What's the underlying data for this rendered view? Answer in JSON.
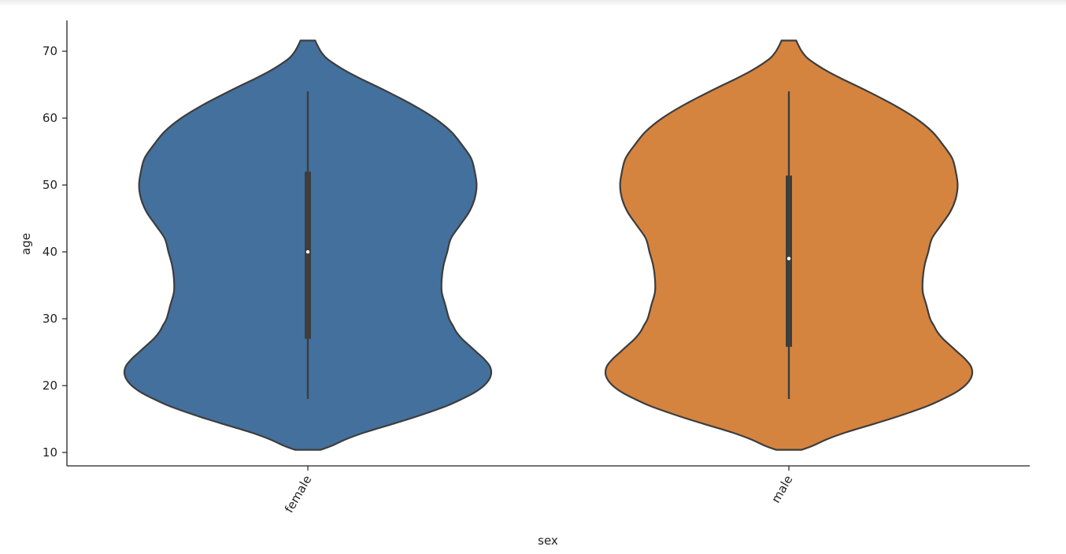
{
  "chart_data": {
    "type": "violin",
    "xlabel": "sex",
    "ylabel": "age",
    "categories": [
      "female",
      "male"
    ],
    "ylim": [
      8,
      74.6
    ],
    "yticks": [
      10,
      20,
      30,
      40,
      50,
      60,
      70
    ],
    "grid": false,
    "colors": {
      "female": "#44709d",
      "male": "#d4843f",
      "outline": "#3d3d3d",
      "box": "#3d3d3d",
      "median": "#ffffff",
      "axis": "#222222"
    },
    "violins": [
      {
        "category": "female",
        "min": 18,
        "q1": 27,
        "median": 40,
        "q3": 52,
        "max": 64,
        "kde_range": [
          10.4,
          71.6
        ],
        "density_profile": [
          [
            10.4,
            0.07
          ],
          [
            11.0,
            0.13
          ],
          [
            12.0,
            0.21
          ],
          [
            13.0,
            0.31
          ],
          [
            14.0,
            0.43
          ],
          [
            15.0,
            0.55
          ],
          [
            16.0,
            0.66
          ],
          [
            17.0,
            0.76
          ],
          [
            18.0,
            0.84
          ],
          [
            19.0,
            0.91
          ],
          [
            20.0,
            0.96
          ],
          [
            21.0,
            0.99
          ],
          [
            22.0,
            1.0
          ],
          [
            23.0,
            0.99
          ],
          [
            24.0,
            0.96
          ],
          [
            25.0,
            0.92
          ],
          [
            26.0,
            0.88
          ],
          [
            27.0,
            0.84
          ],
          [
            28.0,
            0.81
          ],
          [
            29.0,
            0.79
          ],
          [
            30.0,
            0.77
          ],
          [
            32.0,
            0.75
          ],
          [
            34.0,
            0.73
          ],
          [
            36.0,
            0.73
          ],
          [
            38.0,
            0.74
          ],
          [
            40.0,
            0.76
          ],
          [
            42.0,
            0.78
          ],
          [
            44.0,
            0.83
          ],
          [
            46.0,
            0.88
          ],
          [
            48.0,
            0.91
          ],
          [
            50.0,
            0.92
          ],
          [
            52.0,
            0.91
          ],
          [
            54.0,
            0.89
          ],
          [
            56.0,
            0.84
          ],
          [
            58.0,
            0.78
          ],
          [
            60.0,
            0.69
          ],
          [
            62.0,
            0.57
          ],
          [
            64.0,
            0.43
          ],
          [
            66.0,
            0.28
          ],
          [
            67.0,
            0.21
          ],
          [
            68.0,
            0.15
          ],
          [
            69.0,
            0.1
          ],
          [
            70.0,
            0.07
          ],
          [
            71.0,
            0.05
          ],
          [
            71.6,
            0.04
          ]
        ]
      },
      {
        "category": "male",
        "min": 18,
        "q1": 25.8,
        "median": 39,
        "q3": 51.4,
        "max": 64,
        "kde_range": [
          10.4,
          71.6
        ],
        "density_profile": [
          [
            10.4,
            0.07
          ],
          [
            11.0,
            0.13
          ],
          [
            12.0,
            0.21
          ],
          [
            13.0,
            0.31
          ],
          [
            14.0,
            0.43
          ],
          [
            15.0,
            0.55
          ],
          [
            16.0,
            0.66
          ],
          [
            17.0,
            0.76
          ],
          [
            18.0,
            0.84
          ],
          [
            19.0,
            0.91
          ],
          [
            20.0,
            0.96
          ],
          [
            21.0,
            0.99
          ],
          [
            22.0,
            1.0
          ],
          [
            23.0,
            0.99
          ],
          [
            24.0,
            0.96
          ],
          [
            25.0,
            0.92
          ],
          [
            26.0,
            0.88
          ],
          [
            27.0,
            0.84
          ],
          [
            28.0,
            0.81
          ],
          [
            29.0,
            0.79
          ],
          [
            30.0,
            0.77
          ],
          [
            32.0,
            0.75
          ],
          [
            34.0,
            0.73
          ],
          [
            36.0,
            0.73
          ],
          [
            38.0,
            0.74
          ],
          [
            40.0,
            0.76
          ],
          [
            42.0,
            0.78
          ],
          [
            44.0,
            0.83
          ],
          [
            46.0,
            0.88
          ],
          [
            48.0,
            0.91
          ],
          [
            50.0,
            0.92
          ],
          [
            52.0,
            0.91
          ],
          [
            54.0,
            0.89
          ],
          [
            56.0,
            0.84
          ],
          [
            58.0,
            0.78
          ],
          [
            60.0,
            0.69
          ],
          [
            62.0,
            0.57
          ],
          [
            64.0,
            0.43
          ],
          [
            66.0,
            0.28
          ],
          [
            67.0,
            0.21
          ],
          [
            68.0,
            0.15
          ],
          [
            69.0,
            0.1
          ],
          [
            70.0,
            0.07
          ],
          [
            71.0,
            0.05
          ],
          [
            71.6,
            0.04
          ]
        ]
      }
    ]
  }
}
